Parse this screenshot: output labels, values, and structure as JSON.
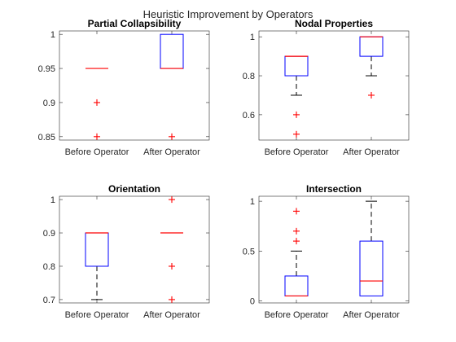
{
  "figure": {
    "title": "Heuristic Improvement by Operators"
  },
  "colors": {
    "box": "#0000ff",
    "median": "#ff0000",
    "whisker": "#000000",
    "outlier": "#ff0000",
    "axis": "#262626"
  },
  "chart_data": [
    {
      "type": "box",
      "title": "Partial Collapsibility",
      "categories": [
        "Before Operator",
        "After Operator"
      ],
      "ylim": [
        0.845,
        1.005
      ],
      "yticks": [
        0.85,
        0.9,
        0.95,
        1
      ],
      "ytick_labels": [
        "0.85",
        "0.9",
        "0.95",
        "1"
      ],
      "boxes": [
        {
          "q1": 0.95,
          "median": 0.95,
          "q3": 0.95,
          "whisker_low": 0.95,
          "whisker_high": 0.95,
          "outliers": [
            0.9,
            0.85
          ]
        },
        {
          "q1": 0.95,
          "median": 0.95,
          "q3": 1.0,
          "whisker_low": 0.95,
          "whisker_high": 1.0,
          "outliers": [
            0.85
          ]
        }
      ]
    },
    {
      "type": "box",
      "title": "Nodal Properties",
      "categories": [
        "Before Operator",
        "After Operator"
      ],
      "ylim": [
        0.47,
        1.03
      ],
      "yticks": [
        0.6,
        0.8,
        1
      ],
      "ytick_labels": [
        "0.6",
        "0.8",
        "1"
      ],
      "boxes": [
        {
          "q1": 0.8,
          "median": 0.9,
          "q3": 0.9,
          "whisker_low": 0.7,
          "whisker_high": 0.9,
          "outliers": [
            0.6,
            0.5
          ]
        },
        {
          "q1": 0.9,
          "median": 1.0,
          "q3": 1.0,
          "whisker_low": 0.8,
          "whisker_high": 1.0,
          "outliers": [
            0.7
          ]
        }
      ]
    },
    {
      "type": "box",
      "title": "Orientation",
      "categories": [
        "Before Operator",
        "After Operator"
      ],
      "ylim": [
        0.69,
        1.01
      ],
      "yticks": [
        0.7,
        0.8,
        0.9,
        1
      ],
      "ytick_labels": [
        "0.7",
        "0.8",
        "0.9",
        "1"
      ],
      "boxes": [
        {
          "q1": 0.8,
          "median": 0.9,
          "q3": 0.9,
          "whisker_low": 0.7,
          "whisker_high": 0.9,
          "outliers": []
        },
        {
          "q1": 0.9,
          "median": 0.9,
          "q3": 0.9,
          "whisker_low": 0.9,
          "whisker_high": 0.9,
          "outliers": [
            1.0,
            0.8,
            0.7
          ]
        }
      ]
    },
    {
      "type": "box",
      "title": "Intersection",
      "categories": [
        "Before Operator",
        "After Operator"
      ],
      "ylim": [
        -0.02,
        1.05
      ],
      "yticks": [
        0,
        0.5,
        1
      ],
      "ytick_labels": [
        "0",
        "0.5",
        "1"
      ],
      "boxes": [
        {
          "q1": 0.05,
          "median": 0.05,
          "q3": 0.25,
          "whisker_low": 0.05,
          "whisker_high": 0.5,
          "outliers": [
            0.6,
            0.7,
            0.9
          ]
        },
        {
          "q1": 0.05,
          "median": 0.2,
          "q3": 0.6,
          "whisker_low": 0.05,
          "whisker_high": 1.0,
          "outliers": []
        }
      ]
    }
  ]
}
